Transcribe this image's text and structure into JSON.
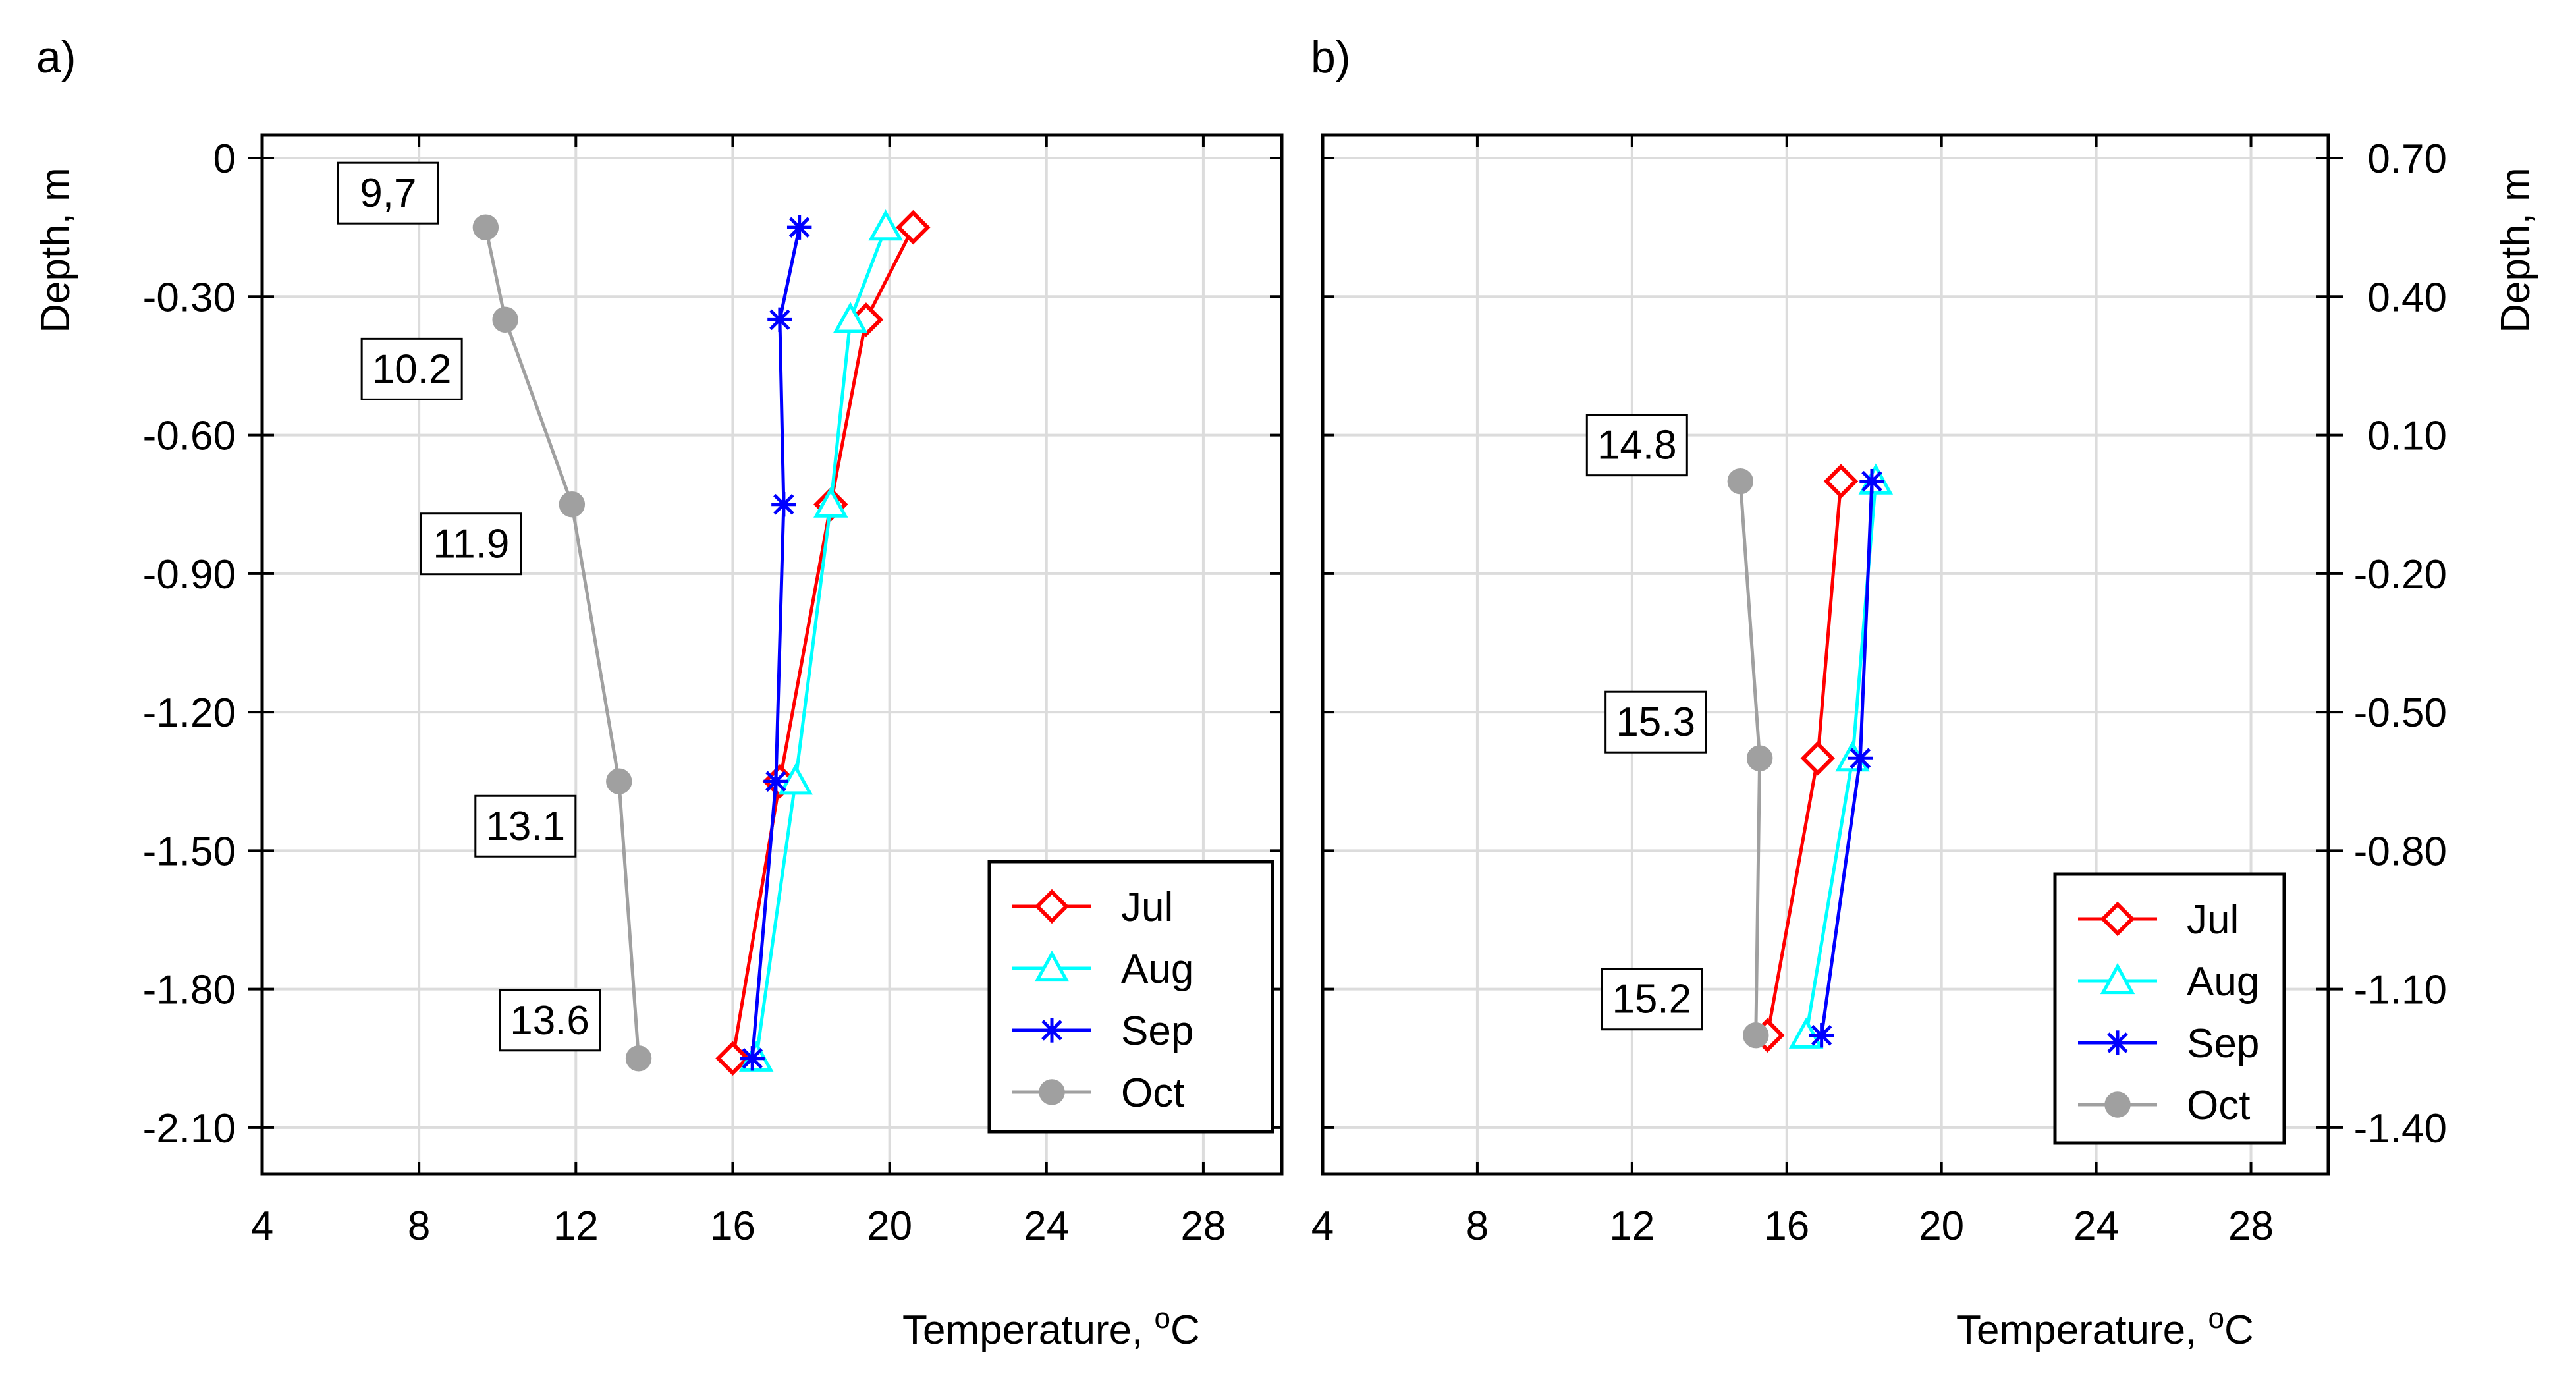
{
  "figure": {
    "panels": [
      {
        "letter": "a)",
        "xlabel": "Temperature, ",
        "xlabel_sup": "o",
        "xlabel_unit": "C",
        "ylabel": "Depth, m",
        "ylabel_side": "left",
        "xticks": [
          "4",
          "8",
          "12",
          "16",
          "20",
          "24",
          "28"
        ],
        "yticks": [
          "0",
          "-0.30",
          "-0.60",
          "-0.90",
          "-1.20",
          "-1.50",
          "-1.80",
          "-2.10"
        ],
        "legend": [
          "Jul",
          "Aug",
          "Sep",
          "Oct"
        ],
        "annotations": [
          "9,7",
          "10.2",
          "11.9",
          "13.1",
          "13.6"
        ]
      },
      {
        "letter": "b)",
        "xlabel": "Temperature, ",
        "xlabel_sup": "o",
        "xlabel_unit": "C",
        "ylabel": "Depth, m",
        "ylabel_side": "right",
        "xticks": [
          "4",
          "8",
          "12",
          "16",
          "20",
          "24",
          "28"
        ],
        "yticks": [
          "0.70",
          "0.40",
          "0.10",
          "-0.20",
          "-0.50",
          "-0.80",
          "-1.10",
          "-1.40"
        ],
        "legend": [
          "Jul",
          "Aug",
          "Sep",
          "Oct"
        ],
        "annotations": [
          "14.8",
          "15.3",
          "15.2"
        ]
      }
    ],
    "colors": {
      "Jul": "#ff0000",
      "Aug": "#00ffff",
      "Sep": "#0000ff",
      "Oct": "#a0a0a0"
    }
  },
  "chart_data": [
    {
      "type": "line",
      "xlabel": "Temperature, oC",
      "ylabel": "Depth, m",
      "xlim": [
        4,
        30
      ],
      "ylim": [
        -2.2,
        0.05
      ],
      "grid": true,
      "legend_position": "bottom-right",
      "series": [
        {
          "name": "Jul",
          "marker": "diamond",
          "color": "#ff0000",
          "points": [
            [
              20.6,
              -0.15
            ],
            [
              19.4,
              -0.35
            ],
            [
              18.5,
              -0.75
            ],
            [
              17.2,
              -1.35
            ],
            [
              16.0,
              -1.95
            ]
          ]
        },
        {
          "name": "Aug",
          "marker": "triangle",
          "color": "#00ffff",
          "points": [
            [
              19.9,
              -0.15
            ],
            [
              19.0,
              -0.35
            ],
            [
              18.5,
              -0.75
            ],
            [
              17.6,
              -1.35
            ],
            [
              16.6,
              -1.95
            ]
          ]
        },
        {
          "name": "Sep",
          "marker": "asterisk",
          "color": "#0000ff",
          "points": [
            [
              17.7,
              -0.15
            ],
            [
              17.2,
              -0.35
            ],
            [
              17.3,
              -0.75
            ],
            [
              17.1,
              -1.35
            ],
            [
              16.5,
              -1.95
            ]
          ]
        },
        {
          "name": "Oct",
          "marker": "circle",
          "color": "#a0a0a0",
          "points": [
            [
              9.7,
              -0.15
            ],
            [
              10.2,
              -0.35
            ],
            [
              11.9,
              -0.75
            ],
            [
              13.1,
              -1.35
            ],
            [
              13.6,
              -1.95
            ]
          ]
        }
      ],
      "annotations": [
        {
          "text": "9,7",
          "x": 9.7,
          "y": -0.15
        },
        {
          "text": "10.2",
          "x": 10.2,
          "y": -0.35
        },
        {
          "text": "11.9",
          "x": 11.9,
          "y": -0.75
        },
        {
          "text": "13.1",
          "x": 13.1,
          "y": -1.35
        },
        {
          "text": "13.6",
          "x": 13.6,
          "y": -1.95
        }
      ]
    },
    {
      "type": "line",
      "xlabel": "Temperature, oC",
      "ylabel": "Depth, m",
      "xlim": [
        4,
        30
      ],
      "ylim": [
        -1.5,
        0.75
      ],
      "grid": true,
      "legend_position": "bottom-right",
      "series": [
        {
          "name": "Jul",
          "marker": "diamond",
          "color": "#ff0000",
          "points": [
            [
              17.4,
              0.0
            ],
            [
              16.8,
              -0.6
            ],
            [
              15.5,
              -1.2
            ]
          ]
        },
        {
          "name": "Aug",
          "marker": "triangle",
          "color": "#00ffff",
          "points": [
            [
              18.3,
              0.0
            ],
            [
              17.7,
              -0.6
            ],
            [
              16.5,
              -1.2
            ]
          ]
        },
        {
          "name": "Sep",
          "marker": "asterisk",
          "color": "#0000ff",
          "points": [
            [
              18.2,
              0.0
            ],
            [
              17.9,
              -0.6
            ],
            [
              16.9,
              -1.2
            ]
          ]
        },
        {
          "name": "Oct",
          "marker": "circle",
          "color": "#a0a0a0",
          "points": [
            [
              14.8,
              0.0
            ],
            [
              15.3,
              -0.6
            ],
            [
              15.2,
              -1.2
            ]
          ]
        }
      ],
      "annotations": [
        {
          "text": "14.8",
          "x": 14.8,
          "y": 0.0
        },
        {
          "text": "15.3",
          "x": 15.3,
          "y": -0.6
        },
        {
          "text": "15.2",
          "x": 15.2,
          "y": -1.2
        }
      ]
    }
  ]
}
